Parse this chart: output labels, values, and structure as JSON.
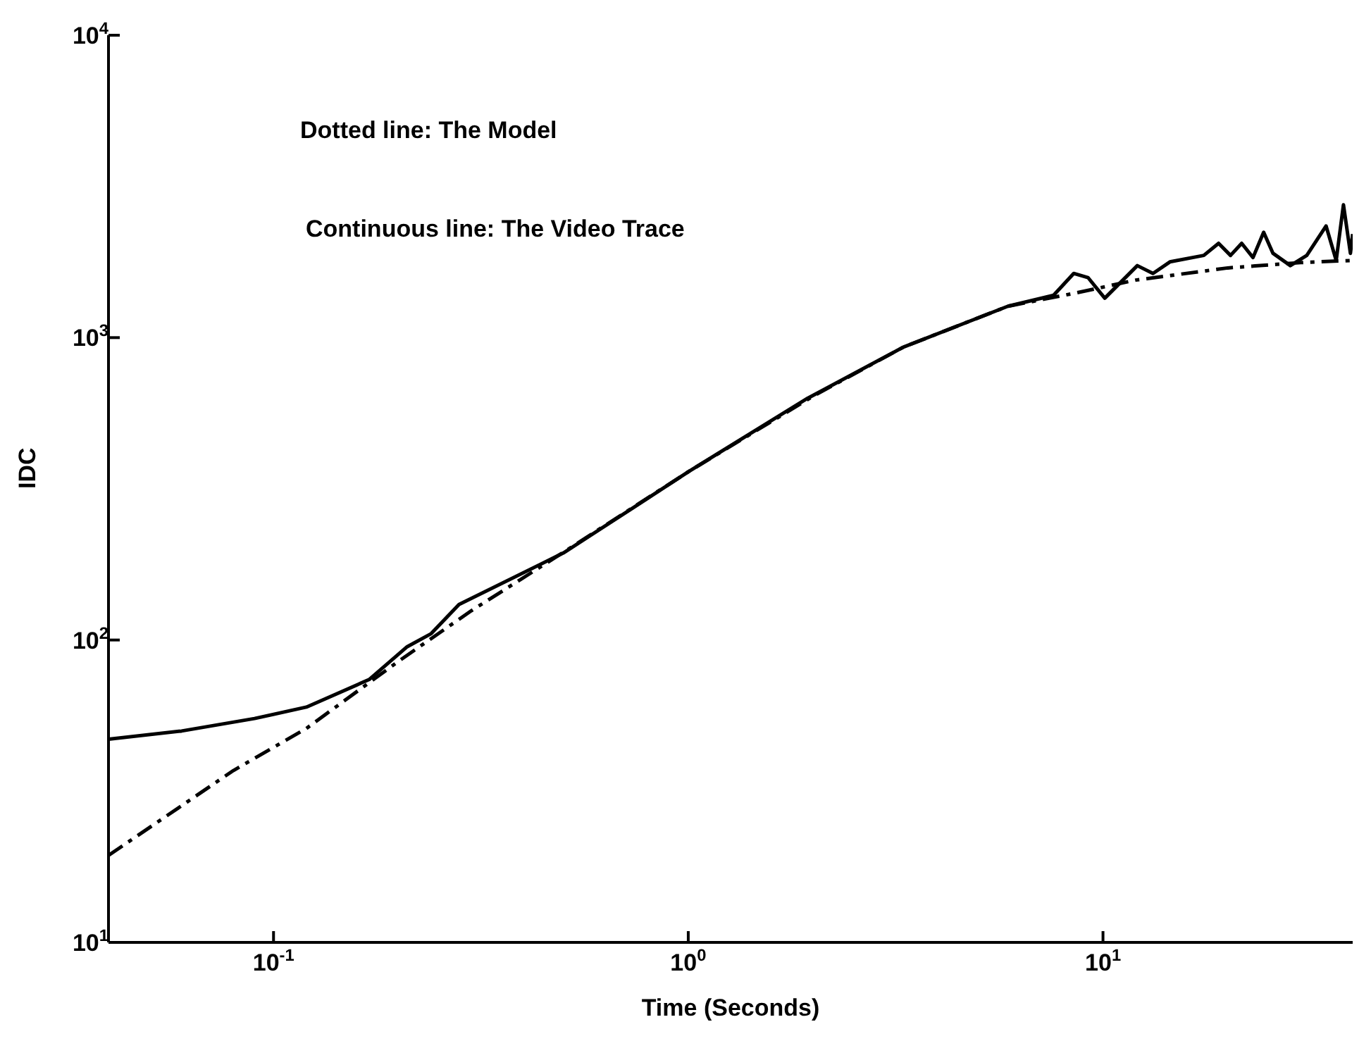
{
  "chart_data": {
    "type": "line",
    "xlabel": "Time (Seconds)",
    "ylabel": "IDC",
    "log": "xy",
    "xlim": [
      0.04,
      40
    ],
    "xticks": [
      {
        "value": 0.1,
        "label": "10$^{-1}$"
      },
      {
        "value": 1,
        "label": "10$^{0}$"
      },
      {
        "value": 10,
        "label": "10$^{1}$"
      }
    ],
    "ylim": [
      10,
      10000
    ],
    "yticks": [
      {
        "value": 10,
        "label": "10$^{1}$"
      },
      {
        "value": 100,
        "label": "10$^{2}$"
      },
      {
        "value": 1000,
        "label": "10$^{3}$"
      },
      {
        "value": 10000,
        "label": "10$^{4}$"
      }
    ],
    "annotations": [
      "Dotted line: The Model",
      "Continuous line: The Video Trace"
    ],
    "series": [
      {
        "color": "#000000",
        "line_style": "dashed",
        "x": [
          0.04,
          0.08,
          0.12,
          0.2,
          0.3,
          0.5,
          1,
          2,
          3.3,
          5.9,
          8.5,
          12,
          20,
          30,
          40
        ],
        "values": [
          19.4,
          37,
          51,
          85,
          125,
          195,
          360,
          640,
          930,
          1270,
          1400,
          1550,
          1700,
          1770,
          1800
        ]
      },
      {
        "color": "#000000",
        "line_style": "solid",
        "x": [
          0.04,
          0.06,
          0.09,
          0.12,
          0.17,
          0.21,
          0.24,
          0.28,
          0.5,
          0.74,
          1,
          1.94,
          3.3,
          5.9,
          7.6,
          8.5,
          9.2,
          10.1,
          12.1,
          13.2,
          14.5,
          17.5,
          19,
          20.3,
          21.6,
          23,
          24.4,
          25.7,
          28.3,
          31,
          34.5,
          36.5,
          38,
          39.5,
          40
        ],
        "values": [
          47,
          50,
          55,
          60,
          74,
          95,
          105,
          131,
          194,
          275,
          360,
          630,
          930,
          1270,
          1380,
          1630,
          1580,
          1350,
          1730,
          1630,
          1780,
          1870,
          2050,
          1870,
          2050,
          1840,
          2230,
          1900,
          1730,
          1870,
          2340,
          1800,
          2750,
          1900,
          2200
        ]
      }
    ]
  }
}
